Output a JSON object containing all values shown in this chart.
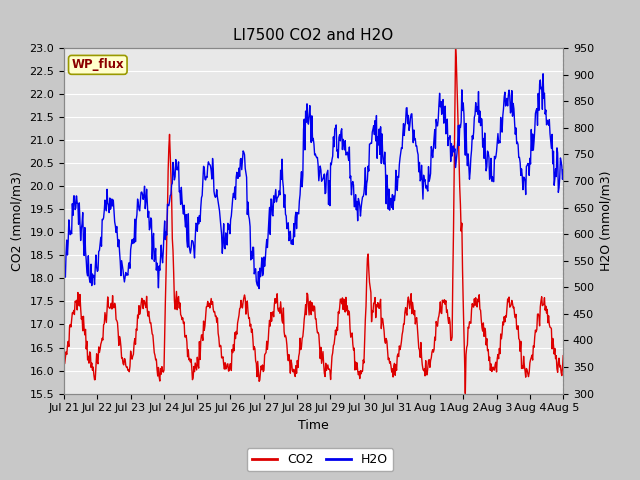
{
  "title": "LI7500 CO2 and H2O",
  "xlabel": "Time",
  "ylabel_left": "CO2 (mmol/m3)",
  "ylabel_right": "H2O (mmol/m3)",
  "co2_color": "#dd0000",
  "h2o_color": "#0000ee",
  "ylim_left": [
    15.5,
    23.0
  ],
  "ylim_right": [
    300,
    950
  ],
  "yticks_left": [
    15.5,
    16.0,
    16.5,
    17.0,
    17.5,
    18.0,
    18.5,
    19.0,
    19.5,
    20.0,
    20.5,
    21.0,
    21.5,
    22.0,
    22.5,
    23.0
  ],
  "yticks_right": [
    300,
    350,
    400,
    450,
    500,
    550,
    600,
    650,
    700,
    750,
    800,
    850,
    900,
    950
  ],
  "xtick_labels": [
    "Jul 21",
    "Jul 22",
    "Jul 23",
    "Jul 24",
    "Jul 25",
    "Jul 26",
    "Jul 27",
    "Jul 28",
    "Jul 29",
    "Jul 30",
    "Jul 31",
    "Aug 1",
    "Aug 2",
    "Aug 3",
    "Aug 4",
    "Aug 5"
  ],
  "annotation_text": "WP_flux",
  "annotation_color": "#8b0000",
  "annotation_bg": "#ffffcc",
  "fig_bg": "#c8c8c8",
  "plot_bg": "#e8e8e8",
  "grid_color": "#ffffff",
  "title_fontsize": 11,
  "axis_fontsize": 9,
  "tick_fontsize": 8,
  "legend_fontsize": 9,
  "line_width": 1.0,
  "n_days": 15,
  "points_per_day": 48
}
